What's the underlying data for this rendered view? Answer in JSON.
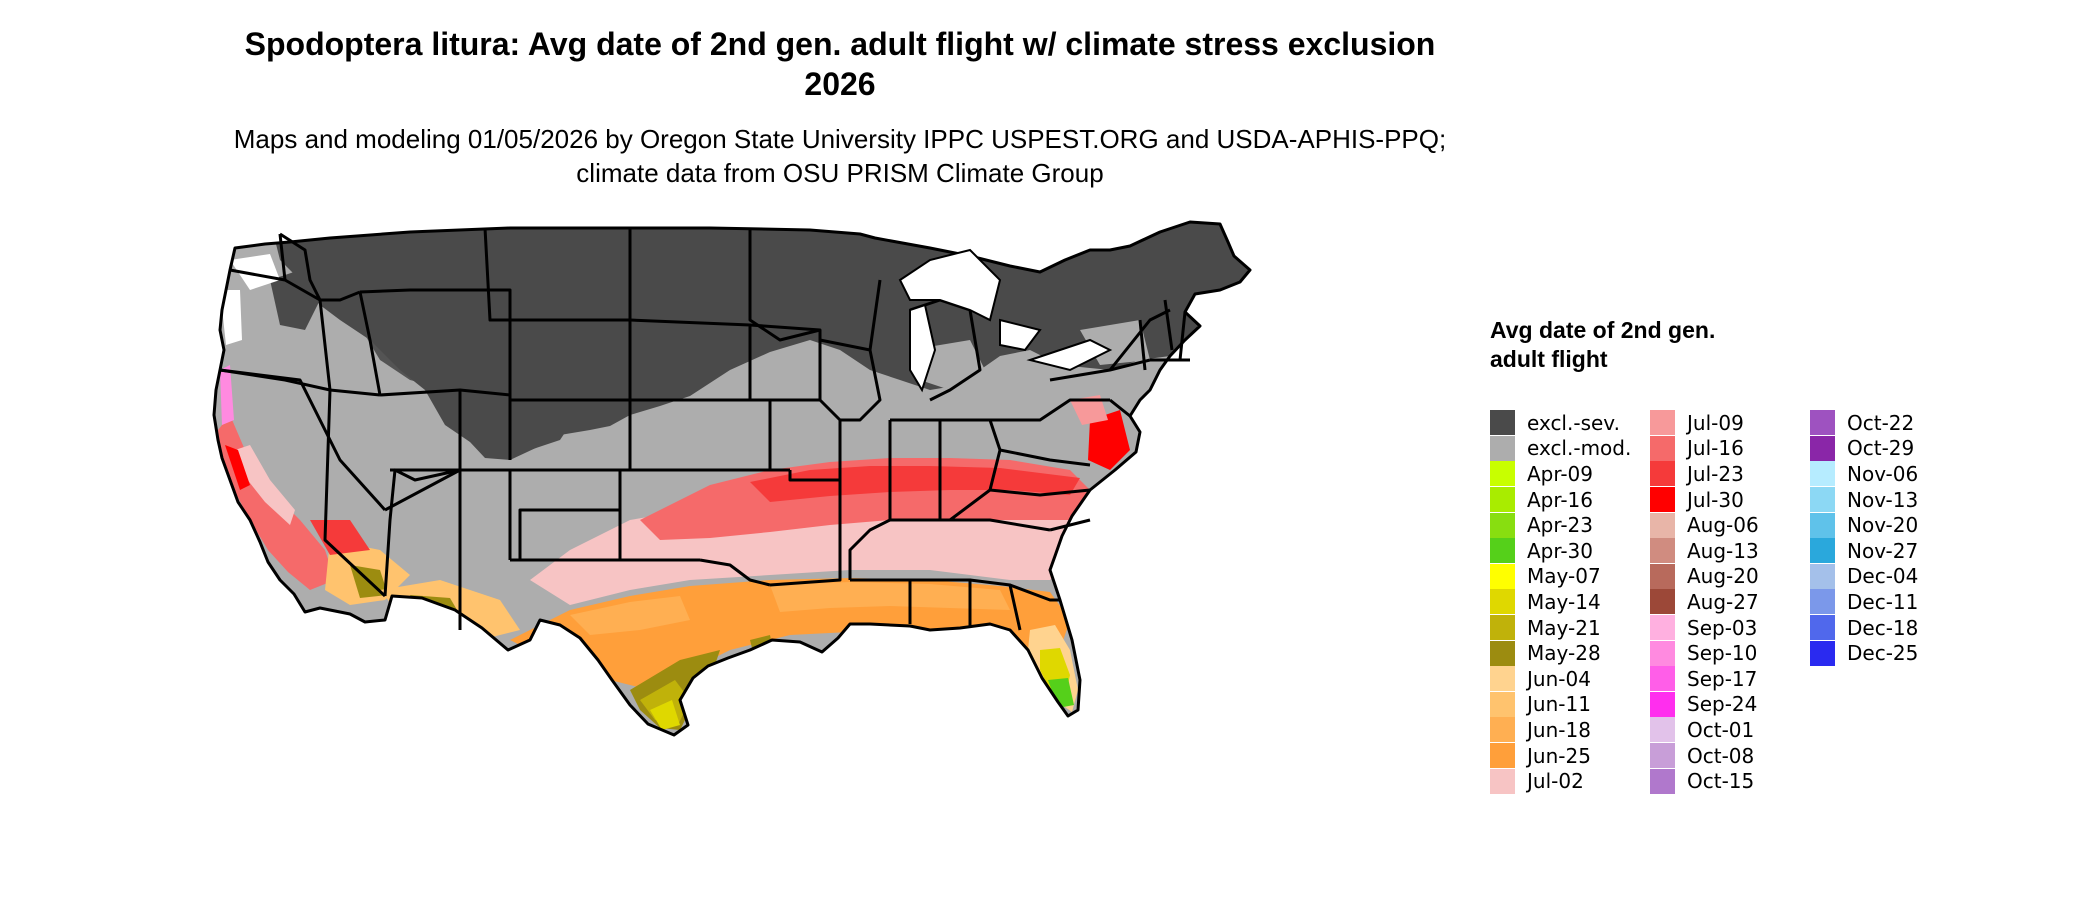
{
  "title": "Spodoptera litura: Avg date of 2nd gen. adult flight w/ climate stress exclusion 2026",
  "subtitle": "Maps and modeling 01/05/2026 by Oregon State University IPPC USPEST.ORG and USDA-APHIS-PPQ; climate data from OSU PRISM Climate Group",
  "legend": {
    "title": "Avg date of 2nd gen. adult flight",
    "items": [
      {
        "label": "excl.-sev.",
        "color": "#4a4a4a"
      },
      {
        "label": "excl.-mod.",
        "color": "#adadad"
      },
      {
        "label": "Apr-09",
        "color": "#c8ff00"
      },
      {
        "label": "Apr-16",
        "color": "#a9ec00"
      },
      {
        "label": "Apr-23",
        "color": "#88de10"
      },
      {
        "label": "Apr-30",
        "color": "#55d01a"
      },
      {
        "label": "May-07",
        "color": "#ffff00"
      },
      {
        "label": "May-14",
        "color": "#dfd800"
      },
      {
        "label": "May-21",
        "color": "#c0b20a"
      },
      {
        "label": "May-28",
        "color": "#9c8c10"
      },
      {
        "label": "Jun-04",
        "color": "#ffd38f"
      },
      {
        "label": "Jun-11",
        "color": "#ffc36e"
      },
      {
        "label": "Jun-18",
        "color": "#ffaf52"
      },
      {
        "label": "Jun-25",
        "color": "#ff9f3a"
      },
      {
        "label": "Jul-02",
        "color": "#f7c4c4"
      },
      {
        "label": "Jul-09",
        "color": "#f7999a"
      },
      {
        "label": "Jul-16",
        "color": "#f56a6a"
      },
      {
        "label": "Jul-23",
        "color": "#f53a3a"
      },
      {
        "label": "Jul-30",
        "color": "#ff0000"
      },
      {
        "label": "Aug-06",
        "color": "#e8b5a8"
      },
      {
        "label": "Aug-13",
        "color": "#d08c80"
      },
      {
        "label": "Aug-20",
        "color": "#b86a5c"
      },
      {
        "label": "Aug-27",
        "color": "#9c4838"
      },
      {
        "label": "Sep-03",
        "color": "#ffb0e0"
      },
      {
        "label": "Sep-10",
        "color": "#ff8ae0"
      },
      {
        "label": "Sep-17",
        "color": "#ff5ee8"
      },
      {
        "label": "Sep-24",
        "color": "#ff2eee"
      },
      {
        "label": "Oct-01",
        "color": "#e2c2ea"
      },
      {
        "label": "Oct-08",
        "color": "#c89ed8"
      },
      {
        "label": "Oct-15",
        "color": "#b078cc"
      },
      {
        "label": "Oct-22",
        "color": "#9e52c0"
      },
      {
        "label": "Oct-29",
        "color": "#8a26a8"
      },
      {
        "label": "Nov-06",
        "color": "#b6ecff"
      },
      {
        "label": "Nov-13",
        "color": "#8cd8f4"
      },
      {
        "label": "Nov-20",
        "color": "#5fc2ea"
      },
      {
        "label": "Nov-27",
        "color": "#2aa8dc"
      },
      {
        "label": "Dec-04",
        "color": "#a4c0ea"
      },
      {
        "label": "Dec-11",
        "color": "#7b98ea"
      },
      {
        "label": "Dec-18",
        "color": "#5068ec"
      },
      {
        "label": "Dec-25",
        "color": "#2a2af0"
      }
    ]
  }
}
